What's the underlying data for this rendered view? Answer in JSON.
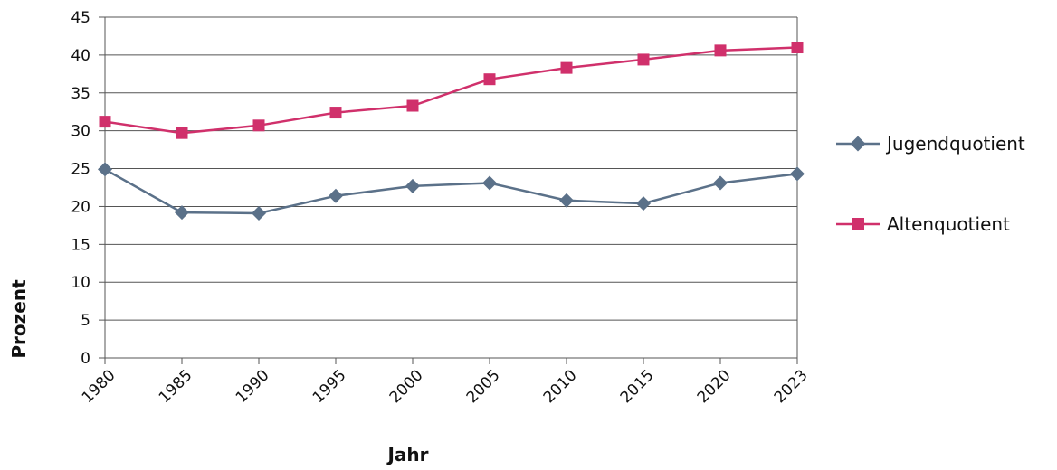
{
  "chart_data": {
    "type": "line",
    "title": "",
    "xlabel": "Jahr",
    "ylabel": "Prozent",
    "categories": [
      "1980",
      "1985",
      "1990",
      "1995",
      "2000",
      "2005",
      "2010",
      "2015",
      "2020",
      "2023"
    ],
    "yticks": [
      "0",
      "5",
      "10",
      "15",
      "20",
      "25",
      "30",
      "35",
      "40",
      "45"
    ],
    "ylim": [
      0,
      45
    ],
    "grid": true,
    "legend_position": "right",
    "series": [
      {
        "name": "Jugendquotient",
        "color": "#5b7189",
        "marker": "diamond",
        "values": [
          24.9,
          19.2,
          19.1,
          21.4,
          22.7,
          23.1,
          20.8,
          20.4,
          23.1,
          24.3
        ]
      },
      {
        "name": "Altenquotient",
        "color": "#d0306b",
        "marker": "square",
        "values": [
          31.2,
          29.7,
          30.7,
          32.4,
          33.3,
          36.8,
          38.3,
          39.4,
          40.6,
          41.0
        ]
      }
    ]
  }
}
